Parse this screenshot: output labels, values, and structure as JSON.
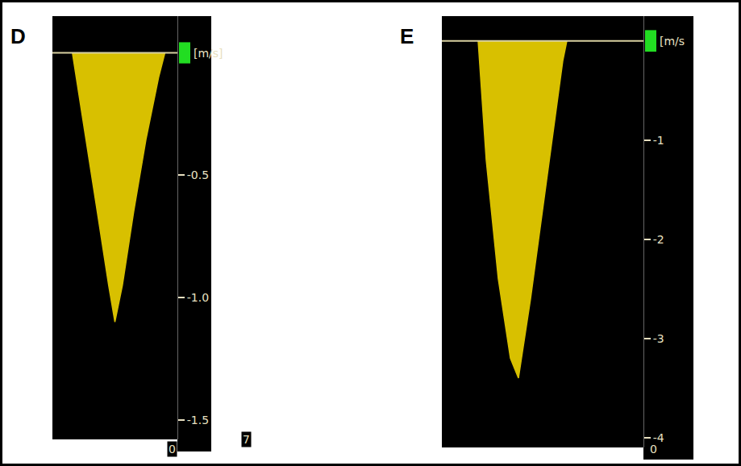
{
  "chart_data": [
    {
      "type": "area",
      "title": "D",
      "ylabel": "[m/s]",
      "x": [
        0.16,
        0.25,
        0.35,
        0.45,
        0.5,
        0.56,
        0.65,
        0.75,
        0.85,
        0.9
      ],
      "values": [
        0,
        -0.3,
        -0.62,
        -0.95,
        -1.1,
        -0.95,
        -0.65,
        -0.35,
        -0.1,
        0
      ],
      "color": "#d8c000",
      "xlim": [
        0,
        1
      ],
      "ylim": [
        -1.58,
        0.15
      ],
      "yticks": [
        -0.5,
        {
          "value": -1,
          "label": "-1.0"
        },
        -1.5
      ],
      "annotations": [
        "0",
        "7"
      ],
      "grid": false,
      "tick_labels": "y"
    },
    {
      "type": "area",
      "title": "E",
      "ylabel": "[m/s",
      "x": [
        0.18,
        0.22,
        0.28,
        0.34,
        0.38,
        0.44,
        0.52,
        0.6,
        0.62
      ],
      "values": [
        0,
        -1.2,
        -2.4,
        -3.2,
        -3.4,
        -2.6,
        -1.4,
        -0.2,
        0
      ],
      "color": "#d8c000",
      "xlim": [
        0,
        1
      ],
      "ylim": [
        -4.1,
        0.25
      ],
      "yticks": [
        -1,
        -2,
        -3,
        -4
      ],
      "annotations": [
        "0"
      ],
      "grid": false,
      "tick_labels": "y"
    }
  ]
}
